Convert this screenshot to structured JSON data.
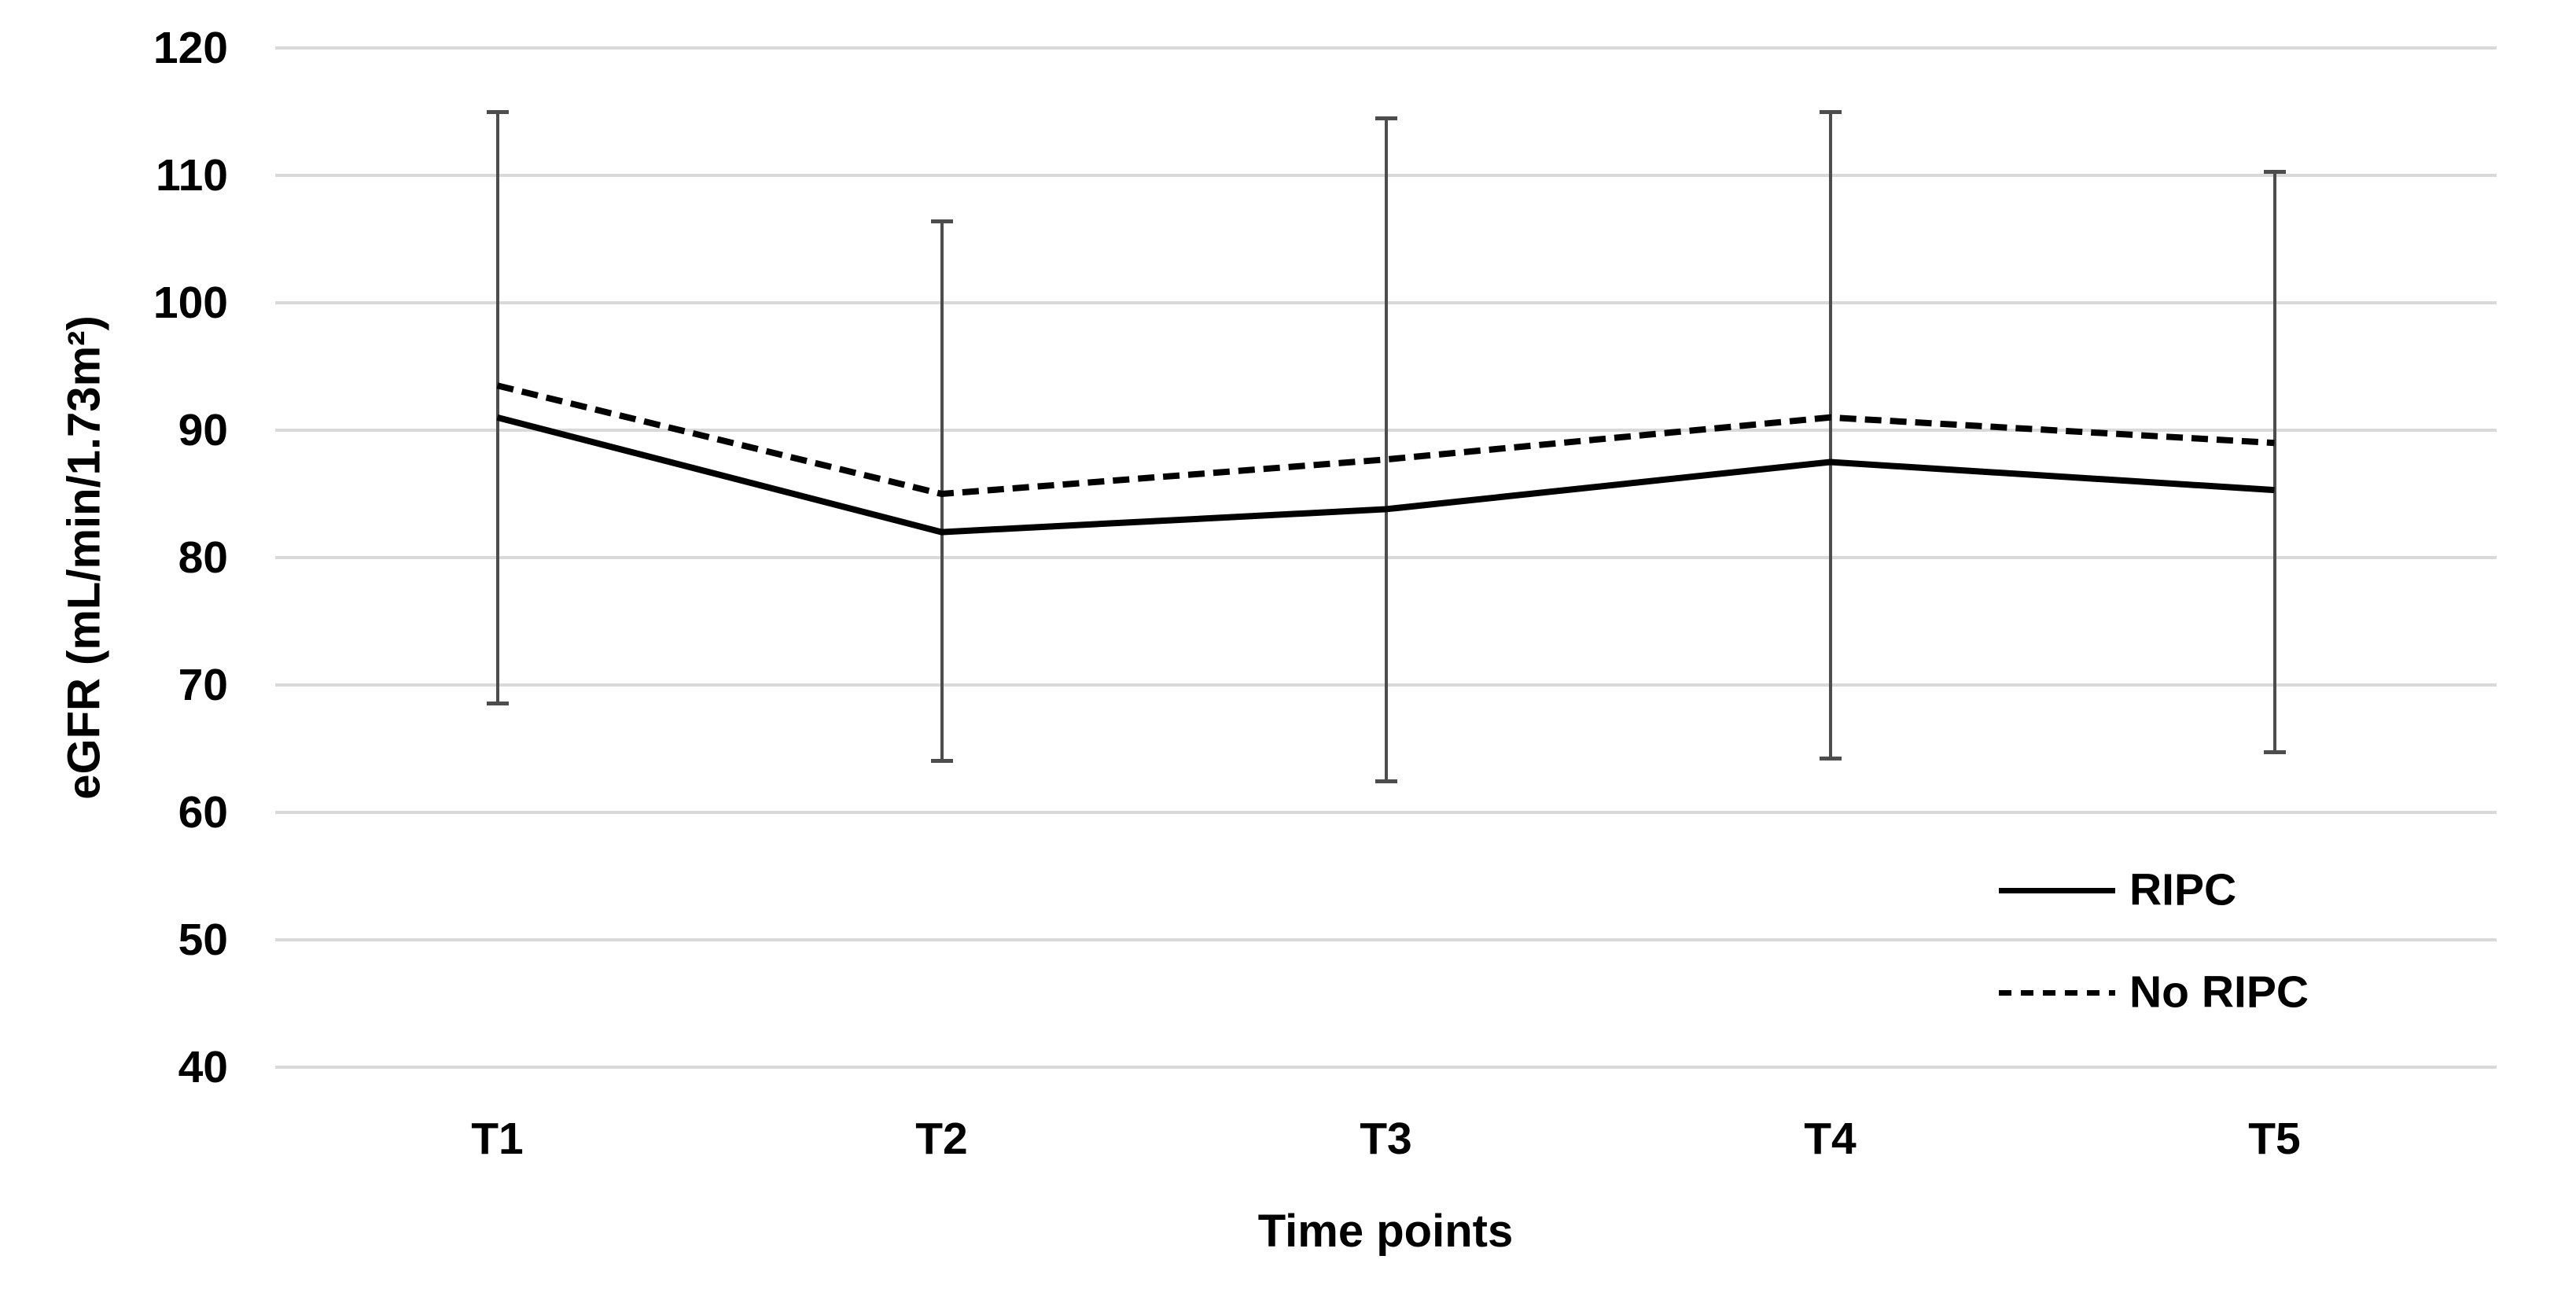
{
  "chart_data": {
    "type": "line",
    "title": "",
    "xlabel": "Time points",
    "ylabel": "eGFR (mL/min/1.73m²)",
    "categories": [
      "T1",
      "T2",
      "T3",
      "T4",
      "T5"
    ],
    "series": [
      {
        "name": "RIPC",
        "line_style": "solid",
        "color": "#000000",
        "values": [
          91,
          82,
          83.8,
          87.5,
          85.3
        ]
      },
      {
        "name": "No RIPC",
        "line_style": "dashed",
        "color": "#000000",
        "values": [
          93.5,
          85,
          87.7,
          91,
          89
        ]
      }
    ],
    "error_bars": {
      "color": "#4d4d4d",
      "ranges": [
        {
          "category": "T1",
          "low": 68.5,
          "high": 115.0
        },
        {
          "category": "T2",
          "low": 64.0,
          "high": 106.4
        },
        {
          "category": "T3",
          "low": 62.4,
          "high": 114.5
        },
        {
          "category": "T4",
          "low": 64.2,
          "high": 115.0
        },
        {
          "category": "T5",
          "low": 64.7,
          "high": 110.3
        }
      ]
    },
    "ylim": [
      40,
      120
    ],
    "ytick_step": 10,
    "grid": "horizontal",
    "gridline_color": "#d9d9d9",
    "background": "#ffffff",
    "legend": {
      "position": "inside-right"
    }
  }
}
